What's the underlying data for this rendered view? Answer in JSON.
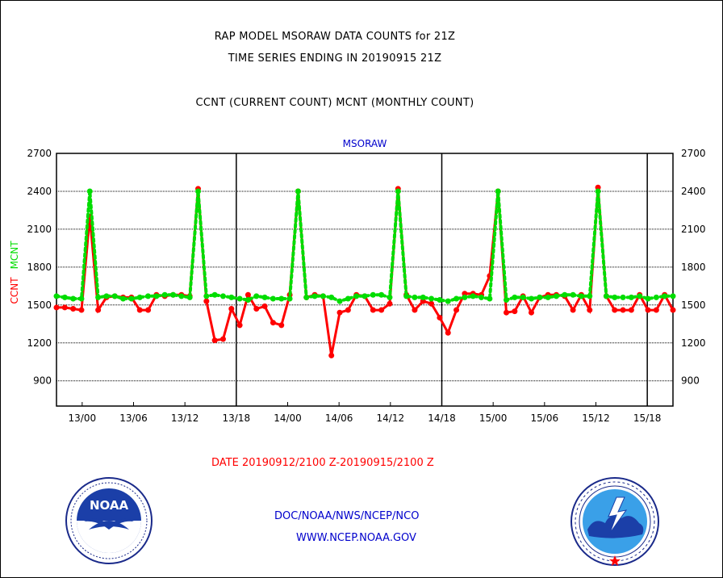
{
  "header": {
    "line1": "RAP MODEL MSORAW DATA COUNTS for 21Z",
    "line2": "TIME SERIES ENDING IN 20190915 21Z",
    "line3": "CCNT (CURRENT COUNT) MCNT (MONTHLY COUNT)"
  },
  "footer": {
    "date_range": "DATE 20190912/2100 Z-20190915/2100 Z",
    "org_path": "DOC/NOAA/NWS/NCEP/NCO",
    "website": "WWW.NCEP.NOAA.GOV"
  },
  "logos": {
    "left_name": "noaa-logo",
    "left_text": "NOAA",
    "right_name": "nws-logo"
  },
  "colors": {
    "ccnt": "#ff0000",
    "mcnt": "#00dd00",
    "blue_text": "#0000cc",
    "date_text": "#ff0000"
  },
  "chart_data": {
    "type": "line",
    "title": "MSORAW",
    "ylabel_ccnt": "CCNT",
    "ylabel_mcnt": "MCNT",
    "y_ticks": [
      "2700",
      "2400",
      "2100",
      "1800",
      "1500",
      "1200",
      "900"
    ],
    "x_ticks": [
      "13/00",
      "13/06",
      "13/12",
      "13/18",
      "14/00",
      "14/06",
      "14/12",
      "14/18",
      "15/00",
      "15/06",
      "15/12",
      "15/18"
    ],
    "ylim": [
      700,
      2700
    ],
    "x_unit": "hours from 20190912/2100 Z",
    "xlim": [
      0,
      72
    ],
    "grid": true,
    "series": [
      {
        "name": "CCNT",
        "color": "#ff0000",
        "values": [
          1480,
          1480,
          1470,
          1460,
          2200,
          1460,
          1560,
          1570,
          1560,
          1560,
          1460,
          1460,
          1580,
          1570,
          1580,
          1580,
          1570,
          2420,
          1530,
          1220,
          1230,
          1470,
          1340,
          1580,
          1470,
          1490,
          1360,
          1340,
          1580,
          2400,
          1560,
          1580,
          1570,
          1100,
          1440,
          1460,
          1580,
          1570,
          1460,
          1460,
          1510,
          2420,
          1580,
          1460,
          1530,
          1510,
          1400,
          1280,
          1460,
          1590,
          1590,
          1580,
          1730,
          2400,
          1440,
          1450,
          1570,
          1440,
          1560,
          1580,
          1580,
          1570,
          1460,
          1580,
          1460,
          2430,
          1570,
          1460,
          1460,
          1460,
          1580,
          1460,
          1460,
          1580,
          1460
        ]
      },
      {
        "name": "MCNT",
        "color": "#00dd00",
        "values": [
          1570,
          1560,
          1550,
          1550,
          2400,
          1560,
          1570,
          1570,
          1550,
          1550,
          1560,
          1570,
          1570,
          1580,
          1580,
          1570,
          1560,
          2400,
          1570,
          1580,
          1570,
          1560,
          1550,
          1540,
          1570,
          1560,
          1550,
          1550,
          1550,
          2400,
          1560,
          1570,
          1570,
          1560,
          1530,
          1550,
          1570,
          1570,
          1580,
          1580,
          1560,
          2400,
          1570,
          1560,
          1560,
          1550,
          1540,
          1530,
          1550,
          1560,
          1570,
          1560,
          1550,
          2400,
          1540,
          1560,
          1560,
          1550,
          1560,
          1560,
          1570,
          1580,
          1580,
          1570,
          1570,
          2400,
          1570,
          1560,
          1560,
          1560,
          1570,
          1550,
          1560,
          1570,
          1570
        ]
      }
    ]
  }
}
